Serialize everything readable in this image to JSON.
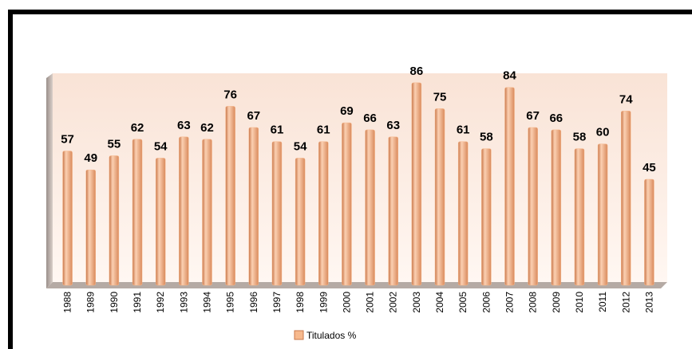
{
  "chart_data": {
    "type": "bar",
    "categories": [
      "1988",
      "1989",
      "1990",
      "1991",
      "1992",
      "1993",
      "1994",
      "1995",
      "1996",
      "1997",
      "1998",
      "1999",
      "2000",
      "2001",
      "2002",
      "2003",
      "2004",
      "2005",
      "2006",
      "2007",
      "2008",
      "2009",
      "2010",
      "2011",
      "2012",
      "2013"
    ],
    "series": [
      {
        "name": "Titulados %",
        "color": "#f7b98d",
        "values": [
          57,
          49,
          55,
          62,
          54,
          63,
          62,
          76,
          67,
          61,
          54,
          61,
          69,
          66,
          63,
          86,
          75,
          61,
          58,
          84,
          67,
          66,
          58,
          60,
          74,
          45
        ]
      }
    ],
    "ylim": [
      0,
      90
    ]
  }
}
